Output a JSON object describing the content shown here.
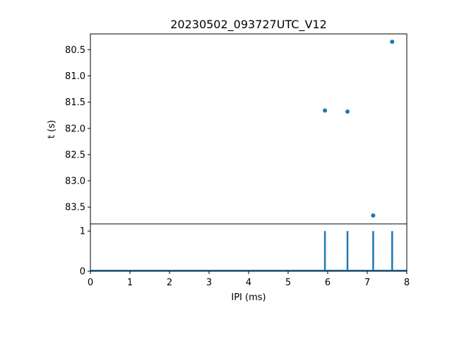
{
  "chart_data": [
    {
      "type": "scatter",
      "title": "20230502_093727UTC_V12",
      "xlabel": "",
      "ylabel": "t (s)",
      "xlim": [
        0,
        8
      ],
      "ylim": [
        83.82,
        80.2
      ],
      "y_inverted": true,
      "yticks": [
        80.5,
        81.0,
        81.5,
        82.0,
        82.5,
        83.0,
        83.5
      ],
      "ytick_labels": [
        "80.5",
        "81.0",
        "81.5",
        "82.0",
        "82.5",
        "83.0",
        "83.5"
      ],
      "color": "#1f77b4",
      "points": [
        {
          "x": 5.93,
          "y": 81.66
        },
        {
          "x": 6.5,
          "y": 81.68
        },
        {
          "x": 7.15,
          "y": 83.66
        },
        {
          "x": 7.63,
          "y": 80.35
        }
      ]
    },
    {
      "type": "line",
      "title": "",
      "xlabel": "IPI (ms)",
      "ylabel": "",
      "xlim": [
        0,
        8
      ],
      "ylim": [
        0,
        1.18
      ],
      "xticks": [
        0,
        1,
        2,
        3,
        4,
        5,
        6,
        7,
        8
      ],
      "xtick_labels": [
        "0",
        "1",
        "2",
        "3",
        "4",
        "5",
        "6",
        "7",
        "8"
      ],
      "yticks": [
        0,
        1
      ],
      "ytick_labels": [
        "0",
        "1"
      ],
      "color": "#1f77b4",
      "spikes_x": [
        5.93,
        6.5,
        7.15,
        7.63
      ],
      "spike_height": 1
    }
  ]
}
